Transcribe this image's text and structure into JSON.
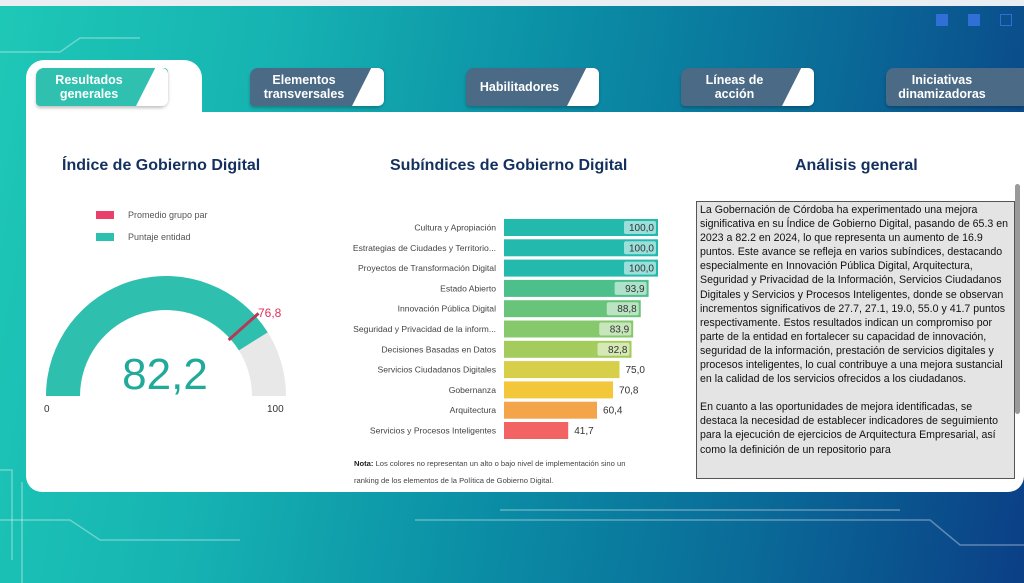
{
  "tabs": [
    {
      "label": "Resultados generales",
      "active": true
    },
    {
      "label": "Elementos transversales",
      "active": false
    },
    {
      "label": "Habilitadores",
      "active": false
    },
    {
      "label": "Líneas de acción",
      "active": false
    },
    {
      "label": "Iniciativas dinamizadoras",
      "active": false
    }
  ],
  "gauge_section": {
    "title": "Índice de Gobierno Digital",
    "legend": [
      {
        "label": "Promedio grupo par",
        "color": "#e8406a"
      },
      {
        "label": "Puntaje entidad",
        "color": "#2fbfae"
      }
    ],
    "value": "82,2",
    "value_num": 82.2,
    "peer_avg": "76,8",
    "peer_avg_num": 76.8,
    "min": "0",
    "max": "100"
  },
  "chart_data": {
    "type": "bar",
    "title": "Subíndices de Gobierno Digital",
    "orientation": "horizontal",
    "xlim": [
      0,
      100
    ],
    "categories": [
      "Cultura y Apropiación",
      "Estrategias de Ciudades y Territorio...",
      "Proyectos de Transformación Digital",
      "Estado Abierto",
      "Innovación Pública Digital",
      "Seguridad y Privacidad de la inform...",
      "Decisiones Basadas en Datos",
      "Servicios Ciudadanos Digitales",
      "Gobernanza",
      "Arquitectura",
      "Servicios y Procesos Inteligentes"
    ],
    "values": [
      100.0,
      100.0,
      100.0,
      93.9,
      88.8,
      83.9,
      82.8,
      75.0,
      70.8,
      60.4,
      41.7
    ],
    "labels": [
      "100,0",
      "100,0",
      "100,0",
      "93,9",
      "88,8",
      "83,9",
      "82,8",
      "75,0",
      "70,8",
      "60,4",
      "41,7"
    ],
    "colors": [
      "#23b9ad",
      "#23b9ad",
      "#23b9ad",
      "#4cbf8a",
      "#68c47a",
      "#86c86c",
      "#a3cc5c",
      "#d7cf4a",
      "#f2c73a",
      "#f4a54a",
      "#f26464"
    ],
    "note_bold": "Nota:",
    "note": "Los colores no representan un alto o bajo nivel de implementación sino un ranking de los elementos de la Política de Gobierno Digital."
  },
  "analysis": {
    "title": "Análisis general",
    "paragraphs": [
      "La Gobernación de Córdoba ha experimentado una mejora significativa en su Índice de Gobierno Digital, pasando de 65.3 en 2023 a 82.2 en 2024, lo que representa un aumento de 16.9 puntos. Este avance se refleja en varios subíndices, destacando especialmente en Innovación Pública Digital, Arquitectura, Seguridad y Privacidad de la Información, Servicios Ciudadanos Digitales y Servicios y Procesos Inteligentes, donde se observan incrementos significativos de 27.7, 27.1, 19.0, 55.0 y 41.7 puntos respectivamente. Estos resultados indican un compromiso por parte de la entidad en fortalecer su capacidad de innovación, seguridad de la información, prestación de servicios digitales y procesos inteligentes, lo cual contribuye a una mejora sustancial en la calidad de los servicios ofrecidos a los ciudadanos.",
      "En cuanto a las oportunidades de mejora identificadas, se destaca la necesidad de establecer indicadores de seguimiento para la ejecución de ejercicios de Arquitectura Empresarial, así como la definición de un repositorio para"
    ]
  }
}
